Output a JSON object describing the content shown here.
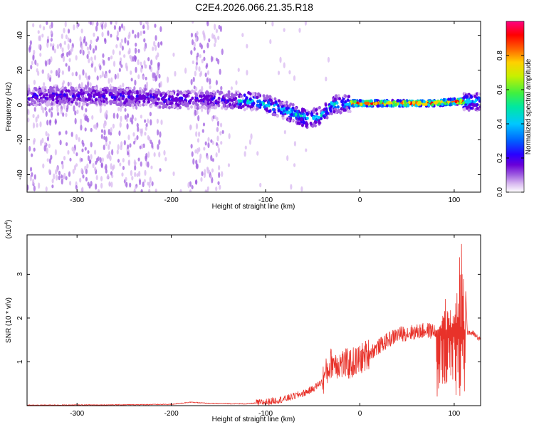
{
  "title": "C2E4.2026.066.21.35.R18",
  "chart_data": [
    {
      "type": "heatmap",
      "xlabel": "Height of straight line (km)",
      "ylabel": "Frequency (Hz)",
      "xlim": [
        -353,
        128
      ],
      "ylim": [
        -50,
        48
      ],
      "xticks": [
        -300,
        -200,
        -100,
        0,
        100
      ],
      "yticks": [
        -40,
        -20,
        0,
        20,
        40
      ],
      "colorbar": {
        "label": "Normalized spectral amplitude",
        "range": [
          0,
          1
        ],
        "ticks": [
          0.0,
          0.2,
          0.4,
          0.6,
          0.8
        ],
        "colormap": [
          "#ffffff",
          "#d8b8f0",
          "#a060e0",
          "#6a00d8",
          "#2a00ff",
          "#0060ff",
          "#00c8ff",
          "#00e8a0",
          "#40f040",
          "#c8f000",
          "#ffd000",
          "#ff6000",
          "#ff0000",
          "#ff0080"
        ]
      },
      "ridge_center": [
        {
          "x": -353,
          "y": 5
        },
        {
          "x": -300,
          "y": 5
        },
        {
          "x": -250,
          "y": 5
        },
        {
          "x": -220,
          "y": 4
        },
        {
          "x": -200,
          "y": 3
        },
        {
          "x": -150,
          "y": 3
        },
        {
          "x": -110,
          "y": 2
        },
        {
          "x": -90,
          "y": -1
        },
        {
          "x": -70,
          "y": -5
        },
        {
          "x": -55,
          "y": -8
        },
        {
          "x": -40,
          "y": -6
        },
        {
          "x": -30,
          "y": 0
        },
        {
          "x": -10,
          "y": 1
        },
        {
          "x": 0,
          "y": 1
        },
        {
          "x": 20,
          "y": 1
        },
        {
          "x": 50,
          "y": 1
        },
        {
          "x": 80,
          "y": 1
        },
        {
          "x": 100,
          "y": 2
        },
        {
          "x": 128,
          "y": 2
        }
      ],
      "noise_bands": [
        [
          -353,
          -210
        ],
        [
          -180,
          -145
        ]
      ],
      "high_amplitude_region": [
        -10,
        110
      ]
    },
    {
      "type": "line",
      "xlabel": "Height of straight line (km)",
      "ylabel": "SNR (10 * v/v)",
      "y_multiplier_label": "(x10",
      "y_multiplier_exp": "4",
      "y_multiplier_close": ")",
      "xlim": [
        -353,
        128
      ],
      "ylim": [
        0,
        3.9
      ],
      "xticks": [
        -300,
        -200,
        -100,
        0,
        100
      ],
      "yticks": [
        1,
        2,
        3
      ],
      "color": "#e8322a",
      "envelope": [
        {
          "x": -353,
          "y": 0.01
        },
        {
          "x": -250,
          "y": 0.02
        },
        {
          "x": -200,
          "y": 0.03
        },
        {
          "x": -180,
          "y": 0.08
        },
        {
          "x": -160,
          "y": 0.05
        },
        {
          "x": -120,
          "y": 0.04
        },
        {
          "x": -100,
          "y": 0.08
        },
        {
          "x": -80,
          "y": 0.15
        },
        {
          "x": -60,
          "y": 0.28
        },
        {
          "x": -50,
          "y": 0.38
        },
        {
          "x": -40,
          "y": 0.55
        },
        {
          "x": -30,
          "y": 1.0
        },
        {
          "x": -20,
          "y": 0.95
        },
        {
          "x": -10,
          "y": 0.95
        },
        {
          "x": 0,
          "y": 1.05
        },
        {
          "x": 10,
          "y": 1.2
        },
        {
          "x": 20,
          "y": 1.35
        },
        {
          "x": 30,
          "y": 1.5
        },
        {
          "x": 40,
          "y": 1.62
        },
        {
          "x": 50,
          "y": 1.66
        },
        {
          "x": 60,
          "y": 1.68
        },
        {
          "x": 70,
          "y": 1.72
        },
        {
          "x": 78,
          "y": 1.7
        },
        {
          "x": 85,
          "y": 1.8
        },
        {
          "x": 90,
          "y": 2.6
        },
        {
          "x": 95,
          "y": 2.2
        },
        {
          "x": 100,
          "y": 2.0
        },
        {
          "x": 105,
          "y": 3.4
        },
        {
          "x": 110,
          "y": 3.9
        },
        {
          "x": 114,
          "y": 1.65
        },
        {
          "x": 120,
          "y": 1.66
        },
        {
          "x": 128,
          "y": 1.5
        }
      ]
    }
  ]
}
